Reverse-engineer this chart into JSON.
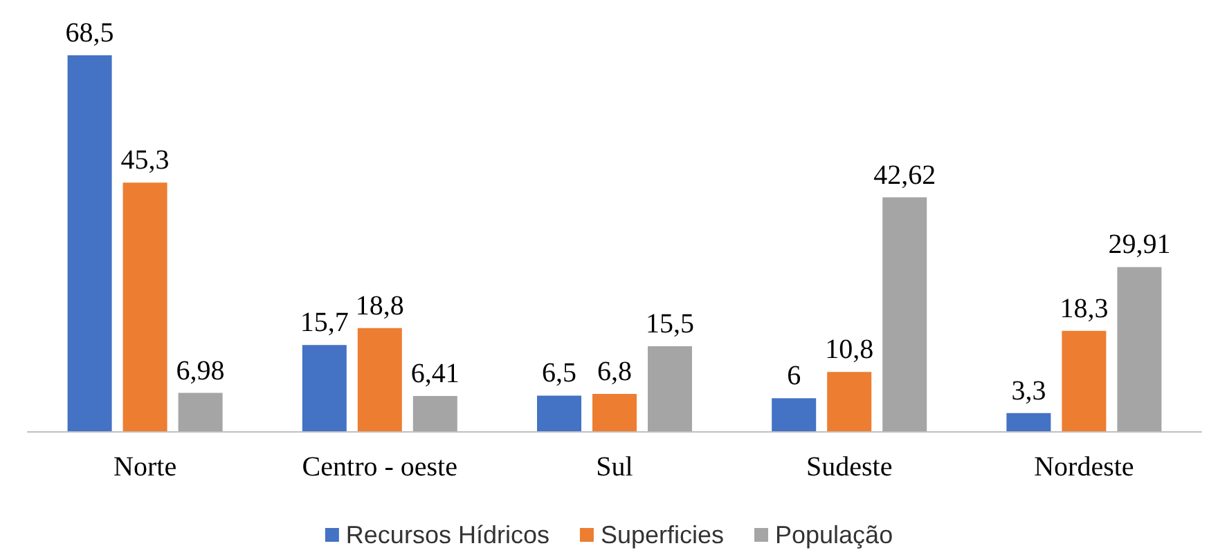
{
  "chart_data": {
    "type": "bar",
    "categories": [
      "Norte",
      "Centro - oeste",
      "Sul",
      "Sudeste",
      "Nordeste"
    ],
    "series": [
      {
        "name": "Recursos Hídricos",
        "color": "#4472c4",
        "values": [
          68.5,
          15.7,
          6.5,
          6,
          3.3
        ],
        "value_labels": [
          "68,5",
          "15,7",
          "6,5",
          "6",
          "3,3"
        ]
      },
      {
        "name": "Superficies",
        "color": "#ed7d31",
        "values": [
          45.3,
          18.8,
          6.8,
          10.8,
          18.3
        ],
        "value_labels": [
          "45,3",
          "18,8",
          "6,8",
          "10,8",
          "18,3"
        ]
      },
      {
        "name": "População",
        "color": "#a5a5a5",
        "values": [
          6.98,
          6.41,
          15.5,
          42.62,
          29.91
        ],
        "value_labels": [
          "6,98",
          "6,41",
          "15,5",
          "42,62",
          "29,91"
        ]
      }
    ],
    "legend": "bottom",
    "grid": false
  }
}
